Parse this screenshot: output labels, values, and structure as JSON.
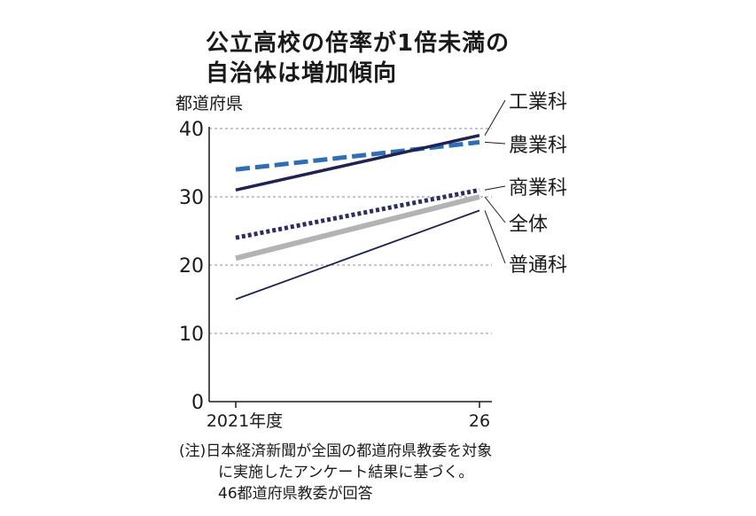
{
  "title": {
    "line1": "公立高校の倍率が1倍未満の",
    "line2": "自治体は増加傾向"
  },
  "unit_label": "都道府県",
  "note": {
    "line1": "(注)日本経済新聞が全国の都道府県教委を対象",
    "line2": "に実施したアンケート結果に基づく。",
    "line3": "46都道府県教委が回答"
  },
  "chart_data": {
    "type": "line",
    "x": [
      "2021年度",
      "26"
    ],
    "ylabel": "都道府県",
    "ylim": [
      0,
      40
    ],
    "yticks": [
      0,
      10,
      20,
      30,
      40
    ],
    "grid": true,
    "legend": "right-end labels",
    "series": [
      {
        "name": "工業科",
        "values": [
          31,
          39
        ],
        "color": "#1f2350",
        "style": "solid",
        "width": 3.5
      },
      {
        "name": "農業科",
        "values": [
          34,
          38
        ],
        "color": "#2f6eb5",
        "style": "dashed",
        "width": 5
      },
      {
        "name": "商業科",
        "values": [
          24,
          31
        ],
        "color": "#2b2d63",
        "style": "dotted",
        "width": 5
      },
      {
        "name": "全体",
        "values": [
          21,
          30
        ],
        "color": "#b3b3b3",
        "style": "solid",
        "width": 6
      },
      {
        "name": "普通科",
        "values": [
          15,
          28
        ],
        "color": "#1f2350",
        "style": "solid",
        "width": 1.8
      }
    ]
  }
}
